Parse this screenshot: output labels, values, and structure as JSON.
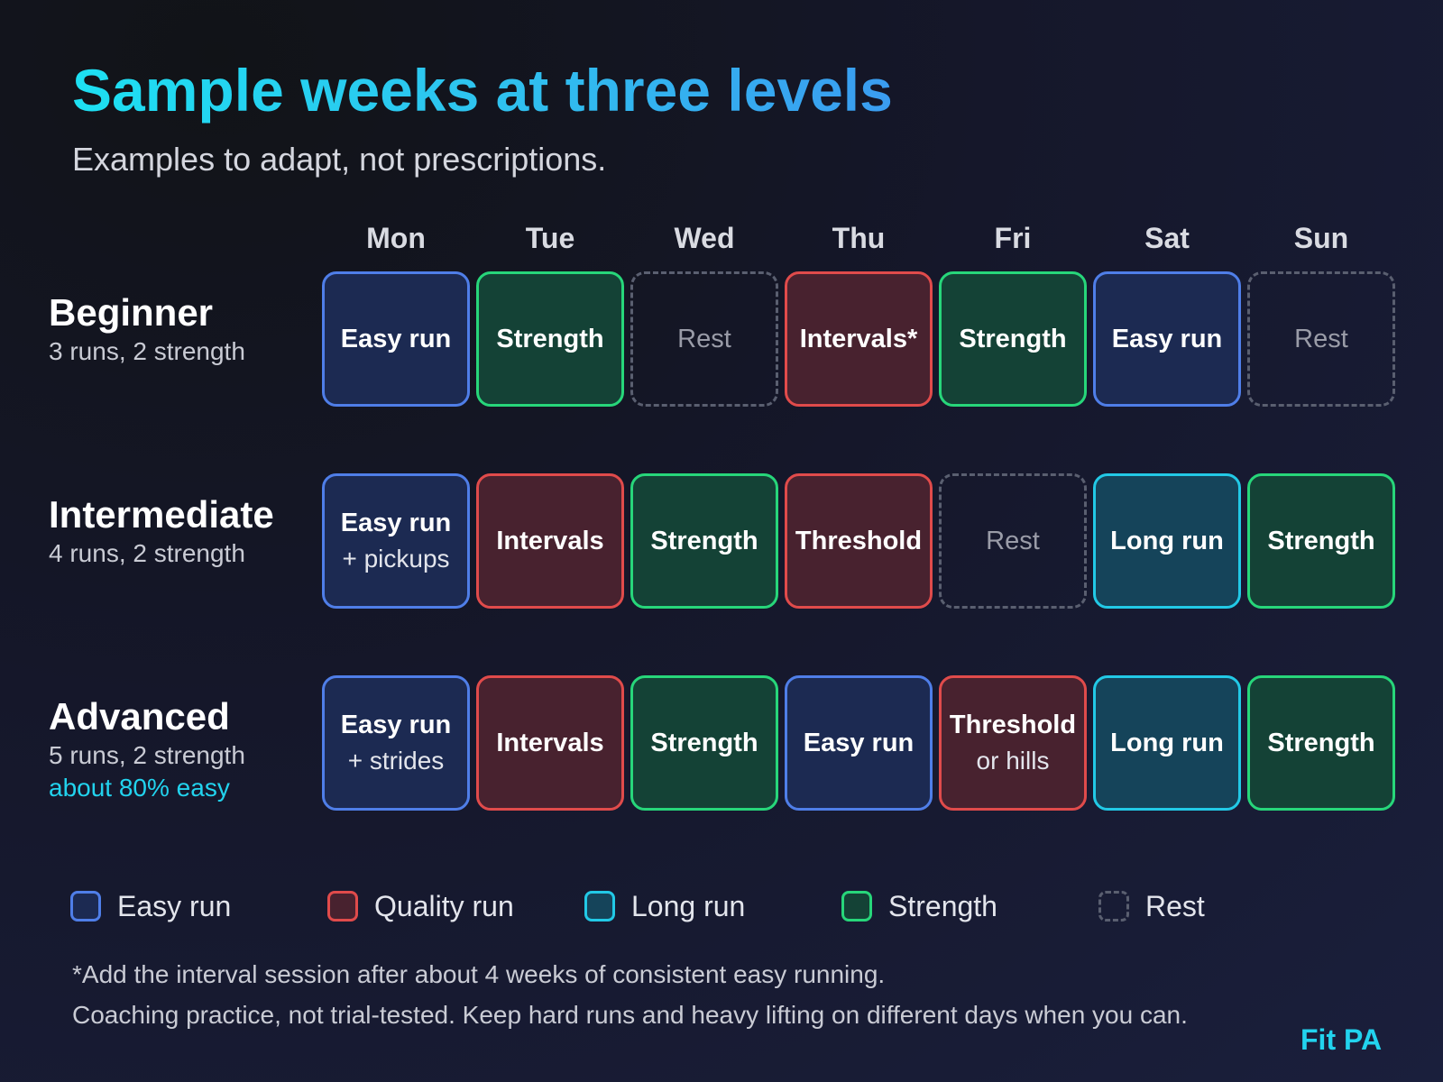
{
  "header": {
    "title": "Sample weeks at three levels",
    "subtitle": "Examples to adapt, not prescriptions."
  },
  "days": [
    "Mon",
    "Tue",
    "Wed",
    "Thu",
    "Fri",
    "Sat",
    "Sun"
  ],
  "levels": [
    {
      "name": "Beginner",
      "desc": "3 runs, 2 strength",
      "note": "",
      "sessions": [
        {
          "type": "easy",
          "line1": "Easy run",
          "line2": ""
        },
        {
          "type": "strength",
          "line1": "Strength",
          "line2": ""
        },
        {
          "type": "rest",
          "line1": "Rest",
          "line2": ""
        },
        {
          "type": "quality",
          "line1": "Intervals*",
          "line2": ""
        },
        {
          "type": "strength",
          "line1": "Strength",
          "line2": ""
        },
        {
          "type": "easy",
          "line1": "Easy run",
          "line2": ""
        },
        {
          "type": "rest",
          "line1": "Rest",
          "line2": ""
        }
      ]
    },
    {
      "name": "Intermediate",
      "desc": "4 runs, 2 strength",
      "note": "",
      "sessions": [
        {
          "type": "easy",
          "line1": "Easy run",
          "line2": "+ pickups"
        },
        {
          "type": "quality",
          "line1": "Intervals",
          "line2": ""
        },
        {
          "type": "strength",
          "line1": "Strength",
          "line2": ""
        },
        {
          "type": "quality",
          "line1": "Threshold",
          "line2": ""
        },
        {
          "type": "rest",
          "line1": "Rest",
          "line2": ""
        },
        {
          "type": "long",
          "line1": "Long run",
          "line2": ""
        },
        {
          "type": "strength",
          "line1": "Strength",
          "line2": ""
        }
      ]
    },
    {
      "name": "Advanced",
      "desc": "5 runs, 2 strength",
      "note": "about 80% easy",
      "sessions": [
        {
          "type": "easy",
          "line1": "Easy run",
          "line2": "+ strides"
        },
        {
          "type": "quality",
          "line1": "Intervals",
          "line2": ""
        },
        {
          "type": "strength",
          "line1": "Strength",
          "line2": ""
        },
        {
          "type": "easy",
          "line1": "Easy run",
          "line2": ""
        },
        {
          "type": "quality",
          "line1": "Threshold",
          "line2": "or hills"
        },
        {
          "type": "long",
          "line1": "Long run",
          "line2": ""
        },
        {
          "type": "strength",
          "line1": "Strength",
          "line2": ""
        }
      ]
    }
  ],
  "legend": [
    {
      "type": "easy",
      "label": "Easy run"
    },
    {
      "type": "quality",
      "label": "Quality run"
    },
    {
      "type": "long",
      "label": "Long run"
    },
    {
      "type": "strength",
      "label": "Strength"
    },
    {
      "type": "rest",
      "label": "Rest"
    }
  ],
  "colors": {
    "easy": {
      "fill": "#1c2a52",
      "border": "#4f7ee8"
    },
    "quality": {
      "fill": "#48222f",
      "border": "#e04b4b"
    },
    "long": {
      "fill": "#15445a",
      "border": "#22c9e6"
    },
    "strength": {
      "fill": "#144236",
      "border": "#27d67a"
    },
    "rest": {
      "fill": "transparent",
      "border": "#5a5f70"
    },
    "accent": "#22d3ee"
  },
  "footnotes": [
    "*Add the interval session after about 4 weeks of consistent easy running.",
    "Coaching practice, not trial-tested. Keep hard runs and heavy lifting on different days when you can."
  ],
  "brand": "Fit PA"
}
